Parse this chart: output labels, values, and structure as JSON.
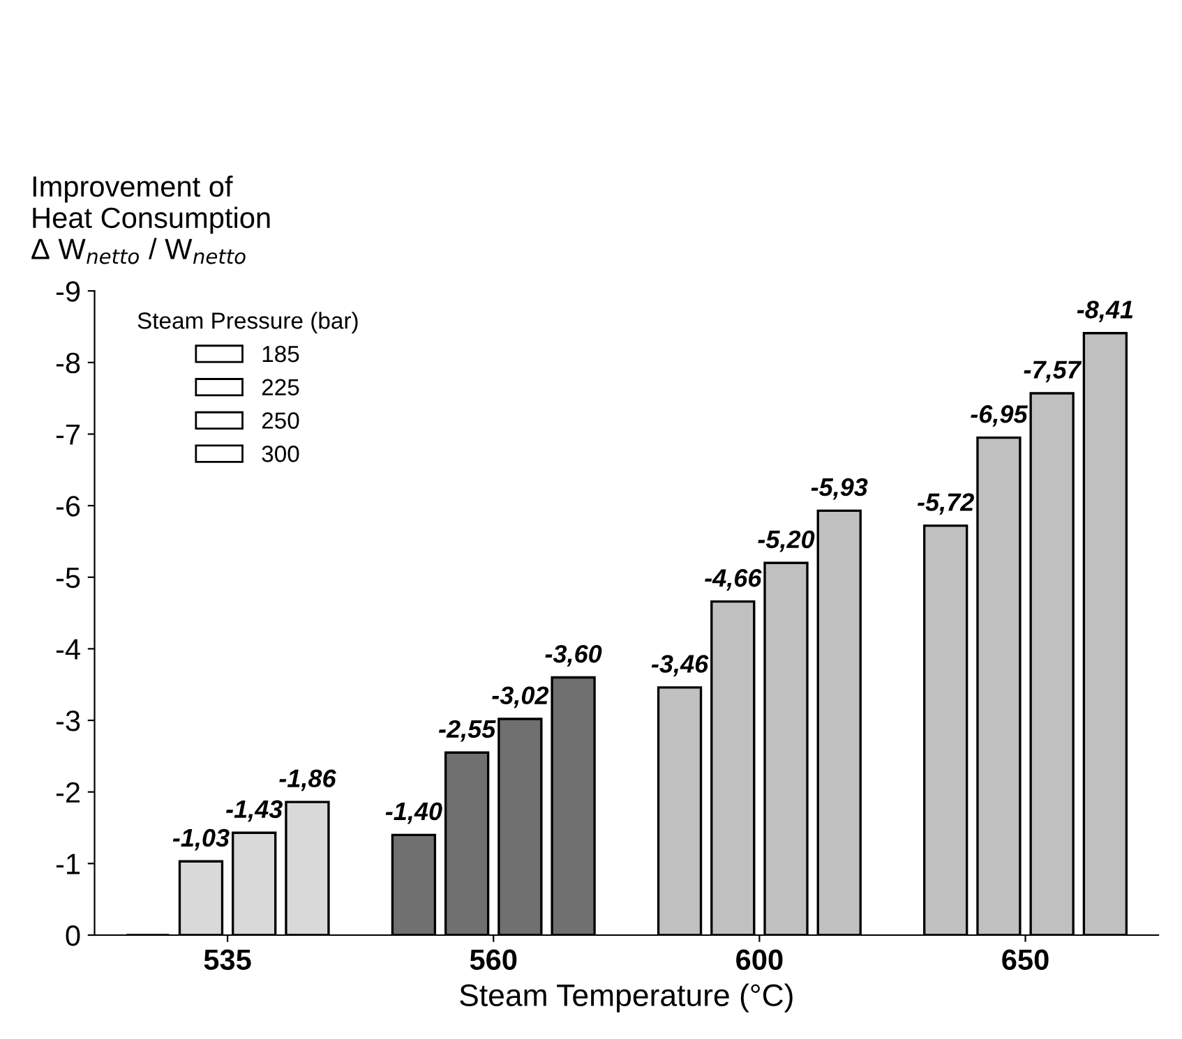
{
  "chart_data": {
    "type": "bar",
    "ylabel": "Improvement of\nHeat Consumption\nΔ W$_{netto}$ / W$_{netto}$",
    "xlabel": "Steam Temperature (°C)",
    "legend_title": "Steam Pressure (bar)",
    "categories": [
      "535",
      "560",
      "600",
      "650"
    ],
    "series": [
      {
        "name": "185",
        "colors": [
          "#000000",
          "#707070",
          "#c0c0c0",
          "#c0c0c0"
        ],
        "values": [
          0,
          -1.4,
          -3.46,
          -5.72
        ],
        "value_labels": [
          null,
          "-1,40",
          "-3,46",
          "-5,72"
        ]
      },
      {
        "name": "225",
        "colors": [
          "#d9d9d9",
          "#707070",
          "#c0c0c0",
          "#c0c0c0"
        ],
        "values": [
          -1.03,
          -2.55,
          -4.66,
          -6.95
        ],
        "value_labels": [
          "-1,03",
          "-2,55",
          "-4,66",
          "-6,95"
        ]
      },
      {
        "name": "250",
        "colors": [
          "#d9d9d9",
          "#707070",
          "#c0c0c0",
          "#c0c0c0"
        ],
        "values": [
          -1.43,
          -3.02,
          -5.2,
          -7.57
        ],
        "value_labels": [
          "-1,43",
          "-3,02",
          "-5,20",
          "-7,57"
        ]
      },
      {
        "name": "300",
        "colors": [
          "#d9d9d9",
          "#707070",
          "#c0c0c0",
          "#c0c0c0"
        ],
        "values": [
          -1.86,
          -3.6,
          -5.93,
          -8.41
        ],
        "value_labels": [
          "-1,86",
          "-3,60",
          "-5,93",
          "-8,41"
        ]
      }
    ],
    "ylim": [
      0,
      -9
    ],
    "yticks": [
      0,
      -1,
      -2,
      -3,
      -4,
      -5,
      -6,
      -7,
      -8,
      -9
    ],
    "grid": false,
    "legend": "top left"
  }
}
